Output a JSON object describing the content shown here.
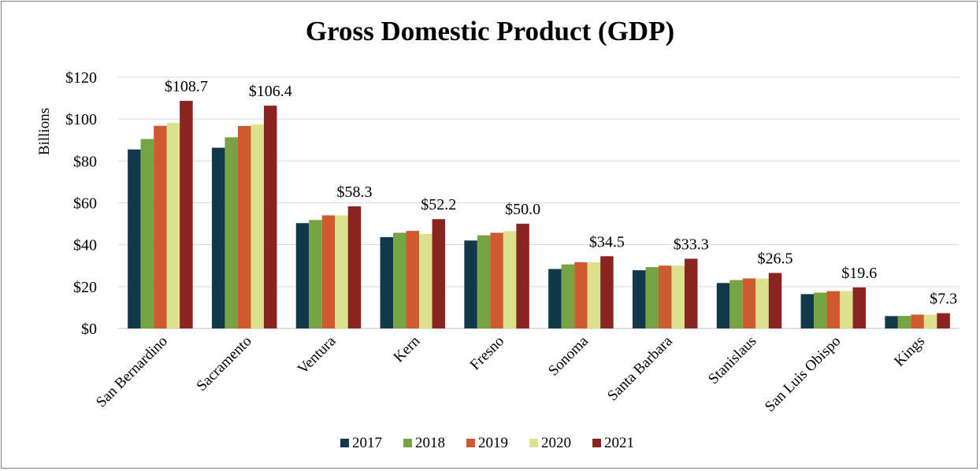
{
  "chart_data": {
    "type": "bar",
    "title": "Gross Domestic Product (GDP)",
    "xlabel": "",
    "ylabel": "Billions",
    "ylim": [
      0,
      120
    ],
    "yticks": [
      {
        "value": 0,
        "label": "$0"
      },
      {
        "value": 20,
        "label": "$20"
      },
      {
        "value": 40,
        "label": "$40"
      },
      {
        "value": 60,
        "label": "$60"
      },
      {
        "value": 80,
        "label": "$80"
      },
      {
        "value": 100,
        "label": "$100"
      },
      {
        "value": 120,
        "label": "$120"
      }
    ],
    "grid": true,
    "legend_position": "bottom",
    "categories": [
      "San Bernardino",
      "Sacramento",
      "Ventura",
      "Kern",
      "Fresno",
      "Sonoma",
      "Santa Barbara",
      "Stanislaus",
      "San Luis Obispo",
      "Kings"
    ],
    "series": [
      {
        "name": "2017",
        "color": "#12394a",
        "values": [
          85.5,
          86.3,
          50.3,
          43.6,
          42.0,
          28.4,
          27.8,
          21.7,
          16.4,
          5.9
        ]
      },
      {
        "name": "2018",
        "color": "#77a442",
        "values": [
          90.5,
          91.3,
          51.8,
          45.7,
          44.5,
          30.6,
          29.3,
          23.1,
          17.1,
          6.0
        ]
      },
      {
        "name": "2019",
        "color": "#cf5a2e",
        "values": [
          96.8,
          96.7,
          54.0,
          46.6,
          45.7,
          31.6,
          30.0,
          23.9,
          17.8,
          6.6
        ]
      },
      {
        "name": "2020",
        "color": "#dde08d",
        "values": [
          98.2,
          97.4,
          54.0,
          45.2,
          46.5,
          31.6,
          30.0,
          23.9,
          17.9,
          6.6
        ]
      },
      {
        "name": "2021",
        "color": "#8b2320",
        "values": [
          108.7,
          106.4,
          58.3,
          52.2,
          50.0,
          34.5,
          33.3,
          26.5,
          19.6,
          7.3
        ]
      }
    ],
    "data_labels": [
      "$108.7",
      "$106.4",
      "$58.3",
      "$52.2",
      "$50.0",
      "$34.5",
      "$33.3",
      "$26.5",
      "$19.6",
      "$7.3"
    ]
  }
}
